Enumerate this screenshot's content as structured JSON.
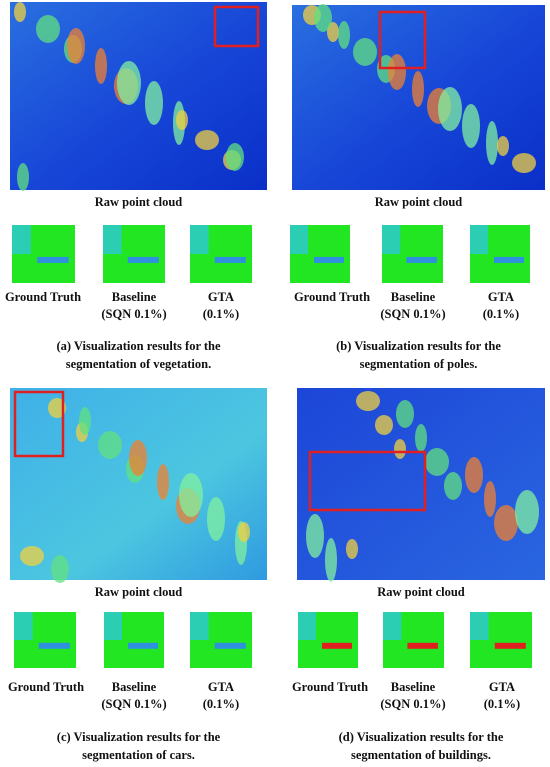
{
  "panels": [
    {
      "raw_label": "Raw point cloud",
      "thumbnails": [
        {
          "lines": [
            "Ground Truth"
          ]
        },
        {
          "lines": [
            "Baseline",
            "(SQN 0.1%)"
          ]
        },
        {
          "lines": [
            "GTA",
            "(0.1%)"
          ]
        }
      ],
      "caption": [
        "(a)  Visualization results for the",
        "segmentation of vegetation."
      ]
    },
    {
      "raw_label": "Raw point cloud",
      "thumbnails": [
        {
          "lines": [
            "Ground Truth"
          ]
        },
        {
          "lines": [
            "Baseline",
            "(SQN 0.1%)"
          ]
        },
        {
          "lines": [
            "GTA",
            "(0.1%)"
          ]
        }
      ],
      "caption": [
        "(b) Visualization results for the",
        "segmentation of poles."
      ]
    },
    {
      "raw_label": "Raw point cloud",
      "thumbnails": [
        {
          "lines": [
            "Ground Truth"
          ]
        },
        {
          "lines": [
            "Baseline",
            "(SQN 0.1%)"
          ]
        },
        {
          "lines": [
            "GTA",
            "(0.1%)"
          ]
        }
      ],
      "caption": [
        "(c)  Visualization results for the",
        "segmentation of cars."
      ]
    },
    {
      "raw_label": "Raw point cloud",
      "thumbnails": [
        {
          "lines": [
            "Ground Truth"
          ]
        },
        {
          "lines": [
            "Baseline",
            "(SQN 0.1%)"
          ]
        },
        {
          "lines": [
            "GTA",
            "(0.1%)"
          ]
        }
      ],
      "caption": [
        "(d) Visualization results for the",
        "segmentation of buildings."
      ]
    }
  ]
}
